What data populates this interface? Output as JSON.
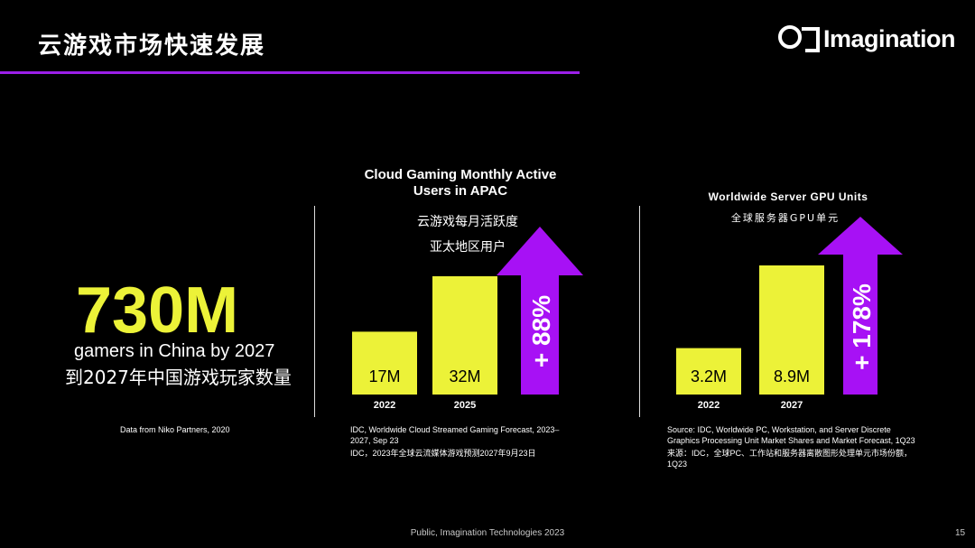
{
  "slide": {
    "title": "云游戏市场快速发展",
    "logo_text": "Imagination",
    "footer": "Public, Imagination Technologies 2023",
    "page_number": "15",
    "accent_color": "#9b1fe8",
    "highlight_color": "#ecf238"
  },
  "stat": {
    "value": "730M",
    "label_en": "gamers in China by 2027",
    "label_cn": "到2027年中国游戏玩家数量",
    "source": "Data from Niko Partners, 2020"
  },
  "chart_data": [
    {
      "type": "bar",
      "title": "Cloud Gaming Monthly Active Users in APAC",
      "title_lines": [
        "Cloud Gaming Monthly Active",
        "Users in APAC"
      ],
      "subtitle_cn_lines": [
        "云游戏每月活跃度",
        "亚太地区用户"
      ],
      "categories": [
        "2022",
        "2025"
      ],
      "values": [
        17,
        32
      ],
      "value_labels": [
        "17M",
        "32M"
      ],
      "unit": "M",
      "growth_label": "+ 88%",
      "source_lines": [
        "IDC, Worldwide Cloud Streamed Gaming Forecast, 2023–2027, Sep 23",
        "IDC，2023年全球云流媒体游戏预测2027年9月23日"
      ]
    },
    {
      "type": "bar",
      "title": "Worldwide Server GPU Units",
      "subtitle_cn": "全球服务器GPU单元",
      "categories": [
        "2022",
        "2027"
      ],
      "values": [
        3.2,
        8.9
      ],
      "value_labels": [
        "3.2M",
        "8.9M"
      ],
      "unit": "M",
      "growth_label": "+ 178%",
      "source_lines": [
        "Source: IDC, Worldwide PC, Workstation, and Server Discrete Graphics Processing Unit Market Shares and Market Forecast, 1Q23",
        "来源：IDC，全球PC、工作站和服务器离散图形处理单元市场份额，1Q23"
      ]
    }
  ]
}
